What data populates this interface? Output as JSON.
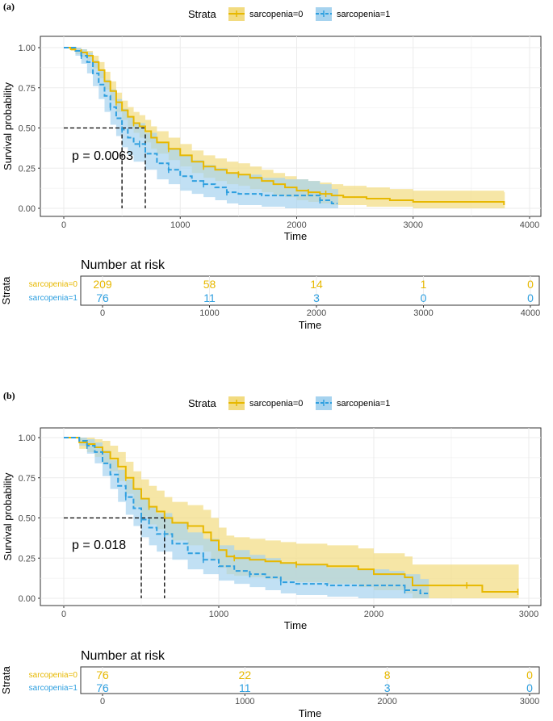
{
  "colors": {
    "group0": "#E7B800",
    "group1": "#2E9FDF",
    "band0": "#F2DB80",
    "band1": "#A6D3EF",
    "grid": "#EBEBEB"
  },
  "chart_data": [
    {
      "type": "line",
      "panel_label": "(a)",
      "xlabel": "Time",
      "ylabel": "Survival probability",
      "xlim": [
        0,
        4000
      ],
      "ylim": [
        0,
        1
      ],
      "x_ticks": [
        "0",
        "1000",
        "2000",
        "3000",
        "4000"
      ],
      "y_ticks": [
        "0.00",
        "0.25",
        "0.50",
        "0.75",
        "1.00"
      ],
      "legend": {
        "title": "Strata",
        "entries": [
          "sarcopenia=0",
          "sarcopenia=1"
        ]
      },
      "pvalue": "p = 0.0063",
      "median": [
        500,
        700
      ],
      "series": [
        {
          "name": "sarcopenia=0",
          "x": [
            0,
            60,
            100,
            150,
            200,
            250,
            300,
            350,
            400,
            450,
            500,
            550,
            600,
            650,
            700,
            750,
            800,
            900,
            1000,
            1100,
            1200,
            1300,
            1400,
            1500,
            1600,
            1700,
            1800,
            1900,
            2000,
            2100,
            2200,
            2300,
            2400,
            2600,
            2800,
            3000,
            3200,
            3500,
            3780
          ],
          "values": [
            1.0,
            0.99,
            0.98,
            0.97,
            0.95,
            0.91,
            0.86,
            0.79,
            0.73,
            0.66,
            0.61,
            0.57,
            0.53,
            0.51,
            0.48,
            0.44,
            0.41,
            0.37,
            0.33,
            0.29,
            0.26,
            0.24,
            0.22,
            0.21,
            0.19,
            0.17,
            0.15,
            0.13,
            0.11,
            0.1,
            0.09,
            0.08,
            0.07,
            0.06,
            0.05,
            0.04,
            0.04,
            0.04,
            0.02
          ],
          "lower": [
            1.0,
            0.98,
            0.96,
            0.94,
            0.92,
            0.87,
            0.81,
            0.74,
            0.67,
            0.6,
            0.55,
            0.51,
            0.47,
            0.44,
            0.41,
            0.37,
            0.34,
            0.3,
            0.26,
            0.22,
            0.19,
            0.17,
            0.15,
            0.14,
            0.12,
            0.1,
            0.08,
            0.07,
            0.05,
            0.04,
            0.03,
            0.02,
            0.02,
            0.01,
            0.01,
            0.0,
            0.0,
            0.0,
            0.0
          ],
          "upper": [
            1.0,
            1.0,
            1.0,
            0.99,
            0.98,
            0.95,
            0.91,
            0.85,
            0.79,
            0.72,
            0.67,
            0.63,
            0.6,
            0.58,
            0.55,
            0.51,
            0.48,
            0.44,
            0.4,
            0.36,
            0.33,
            0.31,
            0.29,
            0.28,
            0.26,
            0.24,
            0.22,
            0.2,
            0.18,
            0.17,
            0.16,
            0.15,
            0.14,
            0.13,
            0.12,
            0.11,
            0.11,
            0.11,
            0.1
          ],
          "censor_x": [
            150,
            450,
            600,
            900,
            1200,
            1500,
            2100,
            2250
          ]
        },
        {
          "name": "sarcopenia=1",
          "x": [
            0,
            100,
            150,
            200,
            250,
            300,
            350,
            400,
            450,
            500,
            550,
            600,
            700,
            800,
            900,
            1000,
            1100,
            1200,
            1300,
            1400,
            1500,
            1700,
            1900,
            2100,
            2200,
            2300,
            2350
          ],
          "values": [
            1.0,
            0.98,
            0.95,
            0.91,
            0.84,
            0.77,
            0.7,
            0.63,
            0.56,
            0.49,
            0.44,
            0.4,
            0.34,
            0.28,
            0.24,
            0.2,
            0.17,
            0.15,
            0.13,
            0.1,
            0.09,
            0.08,
            0.08,
            0.08,
            0.05,
            0.03,
            0.03
          ],
          "lower": [
            1.0,
            0.95,
            0.9,
            0.84,
            0.76,
            0.68,
            0.6,
            0.52,
            0.45,
            0.38,
            0.33,
            0.29,
            0.24,
            0.18,
            0.15,
            0.11,
            0.09,
            0.07,
            0.05,
            0.03,
            0.02,
            0.01,
            0.0,
            0.0,
            0.0,
            0.0,
            0.0
          ],
          "upper": [
            1.0,
            1.0,
            0.99,
            0.97,
            0.92,
            0.86,
            0.8,
            0.74,
            0.68,
            0.62,
            0.57,
            0.53,
            0.47,
            0.41,
            0.37,
            0.33,
            0.3,
            0.27,
            0.25,
            0.22,
            0.21,
            0.19,
            0.18,
            0.17,
            0.15,
            0.12,
            0.12
          ],
          "censor_x": [
            150,
            400,
            500,
            650,
            900,
            1200,
            1400,
            2200
          ]
        }
      ],
      "risk_table": {
        "title": "Number at risk",
        "strata_title": "Strata",
        "xlabel": "Time",
        "rows": [
          {
            "name": "sarcopenia=0",
            "values": [
              "209",
              "58",
              "14",
              "1",
              "0"
            ]
          },
          {
            "name": "sarcopenia=1",
            "values": [
              "76",
              "11",
              "3",
              "0",
              "0"
            ]
          }
        ]
      }
    },
    {
      "type": "line",
      "panel_label": "(b)",
      "xlabel": "Time",
      "ylabel": "Survival probability",
      "xlim": [
        0,
        3000
      ],
      "ylim": [
        0,
        1
      ],
      "x_ticks": [
        "0",
        "1000",
        "2000",
        "3000"
      ],
      "y_ticks": [
        "0.00",
        "0.25",
        "0.50",
        "0.75",
        "1.00"
      ],
      "legend": {
        "title": "Strata",
        "entries": [
          "sarcopenia=0",
          "sarcopenia=1"
        ]
      },
      "pvalue": "p = 0.018",
      "median": [
        500,
        650
      ],
      "series": [
        {
          "name": "sarcopenia=0",
          "x": [
            0,
            50,
            100,
            150,
            200,
            250,
            300,
            350,
            400,
            450,
            500,
            550,
            600,
            650,
            700,
            800,
            900,
            950,
            1000,
            1050,
            1100,
            1200,
            1300,
            1400,
            1500,
            1700,
            1900,
            2000,
            2200,
            2250,
            2300,
            2400,
            2500,
            2600,
            2700,
            2800,
            2930
          ],
          "values": [
            1.0,
            1.0,
            0.97,
            0.96,
            0.94,
            0.91,
            0.87,
            0.82,
            0.75,
            0.68,
            0.62,
            0.57,
            0.54,
            0.5,
            0.47,
            0.45,
            0.41,
            0.36,
            0.3,
            0.26,
            0.25,
            0.24,
            0.23,
            0.22,
            0.21,
            0.2,
            0.18,
            0.15,
            0.13,
            0.08,
            0.08,
            0.08,
            0.08,
            0.08,
            0.04,
            0.04,
            0.04
          ],
          "lower": [
            1.0,
            1.0,
            0.93,
            0.91,
            0.88,
            0.84,
            0.79,
            0.73,
            0.65,
            0.57,
            0.51,
            0.46,
            0.43,
            0.39,
            0.36,
            0.33,
            0.29,
            0.24,
            0.19,
            0.15,
            0.14,
            0.13,
            0.12,
            0.11,
            0.1,
            0.09,
            0.07,
            0.05,
            0.03,
            0.0,
            0.0,
            0.0,
            0.0,
            0.0,
            0.0,
            0.0,
            0.0
          ],
          "upper": [
            1.0,
            1.0,
            1.0,
            1.0,
            0.99,
            0.98,
            0.95,
            0.91,
            0.85,
            0.79,
            0.74,
            0.7,
            0.67,
            0.63,
            0.6,
            0.58,
            0.55,
            0.5,
            0.44,
            0.39,
            0.38,
            0.37,
            0.36,
            0.35,
            0.34,
            0.33,
            0.31,
            0.28,
            0.26,
            0.21,
            0.21,
            0.21,
            0.21,
            0.21,
            0.21,
            0.21,
            0.21
          ],
          "censor_x": [
            150,
            400,
            550,
            800,
            1100,
            1500,
            2600,
            2930
          ]
        },
        {
          "name": "sarcopenia=1",
          "x": [
            0,
            100,
            150,
            200,
            250,
            300,
            350,
            400,
            450,
            500,
            550,
            600,
            700,
            800,
            900,
            1000,
            1100,
            1200,
            1300,
            1400,
            1500,
            1700,
            1900,
            2100,
            2200,
            2300,
            2350
          ],
          "values": [
            1.0,
            0.98,
            0.95,
            0.91,
            0.84,
            0.77,
            0.7,
            0.63,
            0.56,
            0.49,
            0.44,
            0.4,
            0.34,
            0.28,
            0.24,
            0.2,
            0.17,
            0.15,
            0.13,
            0.1,
            0.09,
            0.08,
            0.08,
            0.08,
            0.05,
            0.03,
            0.03
          ],
          "lower": [
            1.0,
            0.95,
            0.9,
            0.84,
            0.76,
            0.68,
            0.6,
            0.52,
            0.45,
            0.38,
            0.33,
            0.29,
            0.24,
            0.18,
            0.15,
            0.11,
            0.09,
            0.07,
            0.05,
            0.03,
            0.02,
            0.01,
            0.0,
            0.0,
            0.0,
            0.0,
            0.0
          ],
          "upper": [
            1.0,
            1.0,
            0.99,
            0.97,
            0.92,
            0.86,
            0.8,
            0.74,
            0.68,
            0.62,
            0.57,
            0.53,
            0.47,
            0.41,
            0.37,
            0.33,
            0.3,
            0.27,
            0.25,
            0.22,
            0.21,
            0.19,
            0.18,
            0.17,
            0.15,
            0.12,
            0.12
          ],
          "censor_x": [
            150,
            400,
            500,
            650,
            900,
            1200,
            1400,
            2200
          ]
        }
      ],
      "risk_table": {
        "title": "Number at risk",
        "strata_title": "Strata",
        "xlabel": "Time",
        "rows": [
          {
            "name": "sarcopenia=0",
            "values": [
              "76",
              "22",
              "8",
              "0"
            ]
          },
          {
            "name": "sarcopenia=1",
            "values": [
              "76",
              "11",
              "3",
              "0"
            ]
          }
        ]
      }
    }
  ]
}
